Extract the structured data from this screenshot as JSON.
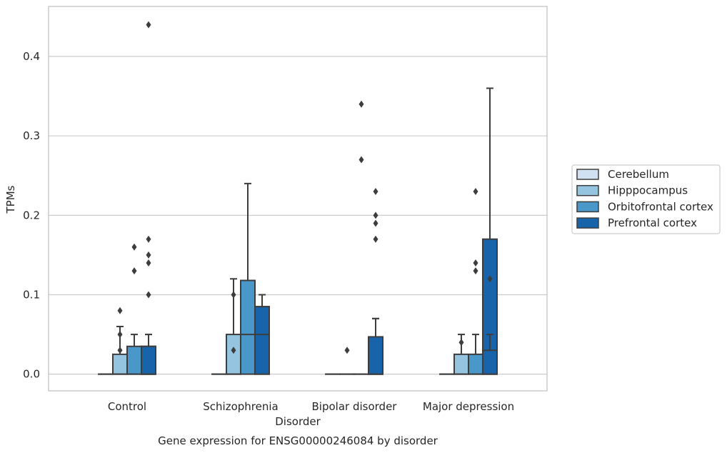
{
  "chart_data": {
    "type": "box",
    "title": "",
    "caption": "Gene expression for ENSG00000246084 by disorder",
    "xlabel": "Disorder",
    "ylabel": "TPMs",
    "ylim": [
      -0.021,
      0.463
    ],
    "yticks": [
      0.0,
      0.1,
      0.2,
      0.3,
      0.4
    ],
    "ytick_labels": [
      "0.0",
      "0.1",
      "0.2",
      "0.3",
      "0.4"
    ],
    "grid": "horizontal",
    "legend_position": "right",
    "categories": [
      "Control",
      "Schizophrenia",
      "Bipolar disorder",
      "Major depression"
    ],
    "series": [
      {
        "name": "Cerebellum",
        "color": "#d0e1f2",
        "boxes": [
          {
            "q1": 0,
            "median": 0,
            "q3": 0,
            "whisker_low": 0,
            "whisker_high": 0,
            "outliers": []
          },
          {
            "q1": 0,
            "median": 0,
            "q3": 0,
            "whisker_low": 0,
            "whisker_high": 0,
            "outliers": []
          },
          {
            "q1": 0,
            "median": 0,
            "q3": 0,
            "whisker_low": 0,
            "whisker_high": 0,
            "outliers": []
          },
          {
            "q1": 0,
            "median": 0,
            "q3": 0,
            "whisker_low": 0,
            "whisker_high": 0,
            "outliers": []
          }
        ]
      },
      {
        "name": "Hipppocampus",
        "color": "#94c4df",
        "boxes": [
          {
            "q1": 0,
            "median": 0,
            "q3": 0.025,
            "whisker_low": 0,
            "whisker_high": 0.06,
            "outliers": [
              0.03,
              0.05,
              0.08
            ]
          },
          {
            "q1": 0,
            "median": 0,
            "q3": 0.05,
            "whisker_low": 0,
            "whisker_high": 0.12,
            "outliers": [
              0.03,
              0.1
            ]
          },
          {
            "q1": 0,
            "median": 0,
            "q3": 0,
            "whisker_low": 0,
            "whisker_high": 0,
            "outliers": [
              0.03
            ]
          },
          {
            "q1": 0,
            "median": 0,
            "q3": 0.025,
            "whisker_low": 0,
            "whisker_high": 0.05,
            "outliers": [
              0.04
            ]
          }
        ]
      },
      {
        "name": "Orbitofrontal cortex",
        "color": "#4a98c9",
        "boxes": [
          {
            "q1": 0,
            "median": 0,
            "q3": 0.035,
            "whisker_low": 0,
            "whisker_high": 0.05,
            "outliers": [
              0.13,
              0.16
            ]
          },
          {
            "q1": 0,
            "median": 0.05,
            "q3": 0.118,
            "whisker_low": 0,
            "whisker_high": 0.24,
            "outliers": []
          },
          {
            "q1": 0,
            "median": 0,
            "q3": 0,
            "whisker_low": 0,
            "whisker_high": 0,
            "outliers": [
              0.27,
              0.34
            ]
          },
          {
            "q1": 0,
            "median": 0,
            "q3": 0.025,
            "whisker_low": 0,
            "whisker_high": 0.05,
            "outliers": [
              0.13,
              0.14,
              0.23
            ]
          }
        ]
      },
      {
        "name": "Prefrontal cortex",
        "color": "#1764ab",
        "boxes": [
          {
            "q1": 0,
            "median": 0,
            "q3": 0.035,
            "whisker_low": 0,
            "whisker_high": 0.05,
            "outliers": [
              0.15,
              0.17,
              0.44
            ]
          },
          {
            "q1": 0,
            "median": 0.05,
            "q3": 0.085,
            "whisker_low": 0,
            "whisker_high": 0.1,
            "outliers": []
          },
          {
            "q1": 0,
            "median": 0,
            "q3": 0.042,
            "whisker_low": 0,
            "whisker_high": 0.07,
            "outliers": [
              0.17,
              0.19
            ]
          },
          {
            "q1": 0,
            "median": 0.02,
            "q3": 0.17,
            "whisker_low": 0,
            "whisker_high": 0.36,
            "outliers": []
          }
        ]
      },
      {
        "name": "",
        "color": "#1764ab",
        "boxes": [
          {
            "q1": 0,
            "median": 0,
            "q3": 0.035,
            "whisker_low": 0,
            "whisker_high": 0.05,
            "outliers": [
              0.1,
              0.14
            ]
          },
          {
            "q1": 0,
            "median": 0.05,
            "q3": 0.085,
            "whisker_low": 0,
            "whisker_high": 0.1,
            "outliers": []
          },
          {
            "q1": 0,
            "median": 0,
            "q3": 0.047,
            "whisker_low": 0,
            "whisker_high": 0.07,
            "outliers": [
              0.2,
              0.23
            ]
          },
          {
            "q1": 0,
            "median": 0,
            "q3": 0.03,
            "whisker_low": 0,
            "whisker_high": 0.05,
            "outliers": [
              0.12
            ]
          }
        ]
      }
    ],
    "legend": [
      "Cerebellum",
      "Hipppocampus",
      "Orbitofrontal cortex",
      "Prefrontal cortex"
    ]
  }
}
